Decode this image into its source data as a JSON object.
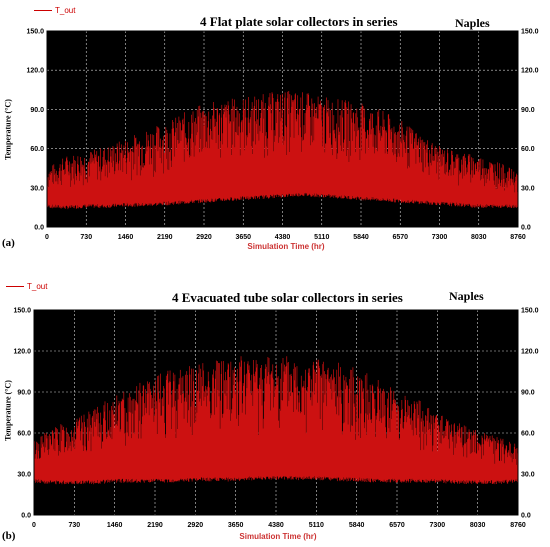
{
  "chart_data": [
    {
      "type": "area",
      "panel_label": "(a)",
      "title": "4  Flat plate  solar collectors in series",
      "location": "Naples",
      "legend": [
        "T_out"
      ],
      "xlabel": "Simulation Time (hr)",
      "ylabel": "Temperature (°C)",
      "xlim": [
        0,
        8760
      ],
      "ylim": [
        0,
        150
      ],
      "x_ticks": [
        "0",
        "730",
        "1460",
        "2190",
        "2920",
        "3650",
        "4380",
        "5110",
        "5840",
        "6570",
        "7300",
        "8030",
        "8760"
      ],
      "y_ticks": [
        "0.0",
        "30.0",
        "60.0",
        "90.0",
        "120.0",
        "150.0"
      ],
      "grid": true,
      "series": [
        {
          "name": "T_out",
          "color": "#cc1111",
          "x": [
            0,
            365,
            730,
            1095,
            1460,
            1825,
            2190,
            2555,
            2920,
            3285,
            3650,
            4015,
            4380,
            4745,
            5110,
            5475,
            5840,
            6205,
            6570,
            6935,
            7300,
            7665,
            8030,
            8395,
            8760
          ],
          "max": [
            45,
            55,
            58,
            62,
            68,
            75,
            80,
            88,
            95,
            98,
            100,
            102,
            105,
            104,
            100,
            98,
            95,
            90,
            82,
            72,
            62,
            58,
            55,
            50,
            42
          ],
          "min": [
            16,
            15,
            16,
            16,
            17,
            17,
            18,
            19,
            20,
            21,
            22,
            23,
            24,
            25,
            24,
            23,
            22,
            21,
            20,
            19,
            18,
            17,
            16,
            16,
            16
          ]
        }
      ]
    },
    {
      "type": "area",
      "panel_label": "(b)",
      "title": "4 Evacuated tube solar collectors in series",
      "location": "Naples",
      "legend": [
        "T_out"
      ],
      "xlabel": "Simulation Time (hr)",
      "ylabel": "Temperature (°C)",
      "xlim": [
        0,
        8760
      ],
      "ylim": [
        0,
        150
      ],
      "x_ticks": [
        "0",
        "730",
        "1460",
        "2190",
        "2920",
        "3650",
        "4380",
        "5110",
        "5840",
        "6570",
        "7300",
        "8030",
        "8760"
      ],
      "y_ticks": [
        "0.0",
        "30.0",
        "60.0",
        "90.0",
        "120.0",
        "150.0"
      ],
      "grid": true,
      "series": [
        {
          "name": "T_out",
          "color": "#cc1111",
          "x": [
            0,
            365,
            730,
            1095,
            1460,
            1825,
            2190,
            2555,
            2920,
            3285,
            3650,
            4015,
            4380,
            4745,
            5110,
            5475,
            5840,
            6205,
            6570,
            6935,
            7300,
            7665,
            8030,
            8395,
            8760
          ],
          "max": [
            55,
            65,
            70,
            78,
            88,
            95,
            102,
            108,
            112,
            115,
            116,
            117,
            118,
            117,
            115,
            112,
            108,
            100,
            92,
            85,
            75,
            68,
            62,
            58,
            52
          ],
          "min": [
            25,
            24,
            24,
            24,
            25,
            25,
            25,
            25,
            26,
            26,
            26,
            27,
            27,
            27,
            27,
            26,
            26,
            25,
            25,
            25,
            25,
            24,
            24,
            24,
            25
          ]
        }
      ]
    }
  ]
}
